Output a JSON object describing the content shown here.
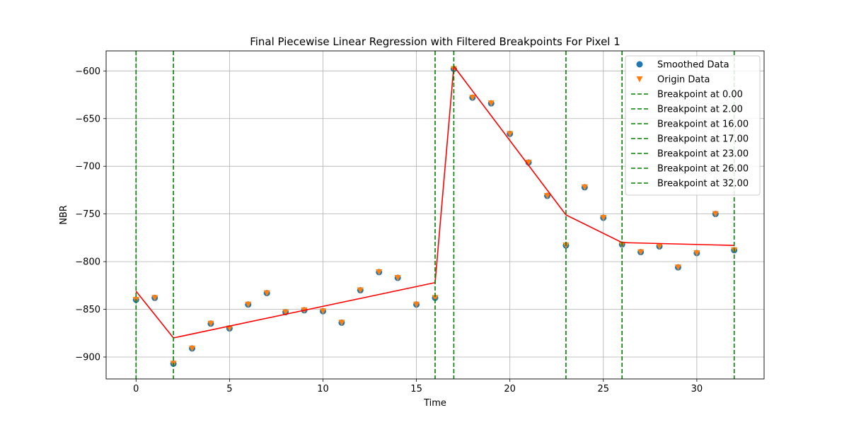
{
  "chart_data": {
    "type": "line",
    "title": "Final Piecewise Linear Regression with Filtered Breakpoints For Pixel 1",
    "xlabel": "Time",
    "ylabel": "NBR",
    "xlim": [
      -1.6,
      33.6
    ],
    "ylim": [
      -923,
      -579
    ],
    "xticks": [
      0,
      5,
      10,
      15,
      20,
      25,
      30
    ],
    "yticks": [
      -900,
      -850,
      -800,
      -750,
      -700,
      -650,
      -600
    ],
    "grid": true,
    "legend_position": "top-right",
    "colors": {
      "smoothed": "#1f77b4",
      "origin": "#ff7f0e",
      "fit": "#ff0000",
      "breakpoint": "#008000"
    },
    "series": [
      {
        "name": "Smoothed Data",
        "kind": "scatter-circle",
        "x": [
          0,
          1,
          2,
          3,
          4,
          5,
          6,
          7,
          8,
          9,
          10,
          11,
          12,
          13,
          14,
          15,
          16,
          17,
          18,
          19,
          20,
          21,
          22,
          23,
          24,
          25,
          26,
          27,
          28,
          29,
          30,
          31,
          32
        ],
        "y": [
          -840,
          -838,
          -907,
          -891,
          -865,
          -870,
          -845,
          -833,
          -853,
          -851,
          -852,
          -864,
          -830,
          -811,
          -817,
          -845,
          -838,
          -598,
          -628,
          -634,
          -666,
          -696,
          -731,
          -783,
          -722,
          -754,
          -782,
          -790,
          -784,
          -806,
          -791,
          -750,
          -788
        ]
      },
      {
        "name": "Origin Data",
        "kind": "scatter-triangle",
        "x": [
          0,
          1,
          2,
          3,
          4,
          5,
          6,
          7,
          8,
          9,
          10,
          11,
          12,
          13,
          14,
          15,
          16,
          17,
          18,
          19,
          20,
          21,
          22,
          23,
          24,
          25,
          26,
          27,
          28,
          29,
          30,
          31,
          32
        ],
        "y": [
          -840,
          -838,
          -907,
          -891,
          -865,
          -870,
          -845,
          -833,
          -853,
          -851,
          -852,
          -864,
          -830,
          -811,
          -817,
          -845,
          -838,
          -598,
          -628,
          -634,
          -666,
          -696,
          -731,
          -783,
          -722,
          -754,
          -782,
          -790,
          -784,
          -806,
          -791,
          -750,
          -788
        ]
      },
      {
        "name": "",
        "kind": "line",
        "x": [
          0,
          2,
          16,
          17,
          23,
          26,
          32
        ],
        "y": [
          -831,
          -880,
          -822,
          -595,
          -751,
          -780,
          -783
        ]
      }
    ],
    "breakpoints": [
      {
        "x": 0,
        "label": "Breakpoint at 0.00"
      },
      {
        "x": 2,
        "label": "Breakpoint at 2.00"
      },
      {
        "x": 16,
        "label": "Breakpoint at 16.00"
      },
      {
        "x": 17,
        "label": "Breakpoint at 17.00"
      },
      {
        "x": 23,
        "label": "Breakpoint at 23.00"
      },
      {
        "x": 26,
        "label": "Breakpoint at 26.00"
      },
      {
        "x": 32,
        "label": "Breakpoint at 32.00"
      }
    ]
  }
}
